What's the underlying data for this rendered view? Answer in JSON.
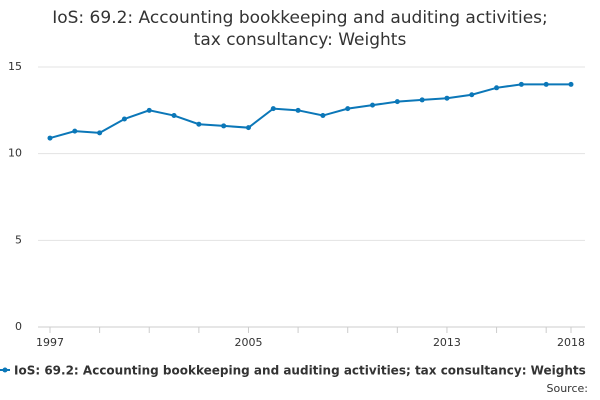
{
  "chart_data": {
    "type": "line",
    "title": "IoS: 69.2: Accounting bookkeeping and auditing activities; tax consultancy: Weights",
    "categories": [
      "1997",
      null,
      null,
      null,
      null,
      null,
      null,
      null,
      "2005",
      null,
      null,
      null,
      null,
      null,
      null,
      null,
      "2013",
      null,
      null,
      null,
      null,
      "2018"
    ],
    "series": [
      {
        "name": "IoS: 69.2: Accounting bookkeeping and auditing activities; tax consultancy: Weights",
        "color": "#0b77b8",
        "values": [
          10.9,
          11.3,
          11.2,
          12.0,
          12.5,
          12.2,
          11.7,
          11.6,
          11.5,
          12.6,
          12.5,
          12.2,
          12.6,
          12.8,
          13.0,
          13.1,
          13.2,
          13.4,
          13.8,
          14.0,
          14.0,
          14.0
        ]
      }
    ],
    "ylim": [
      0,
      15
    ],
    "yticks": [
      0,
      5,
      10,
      15
    ],
    "grid": true,
    "source": "Source:"
  }
}
